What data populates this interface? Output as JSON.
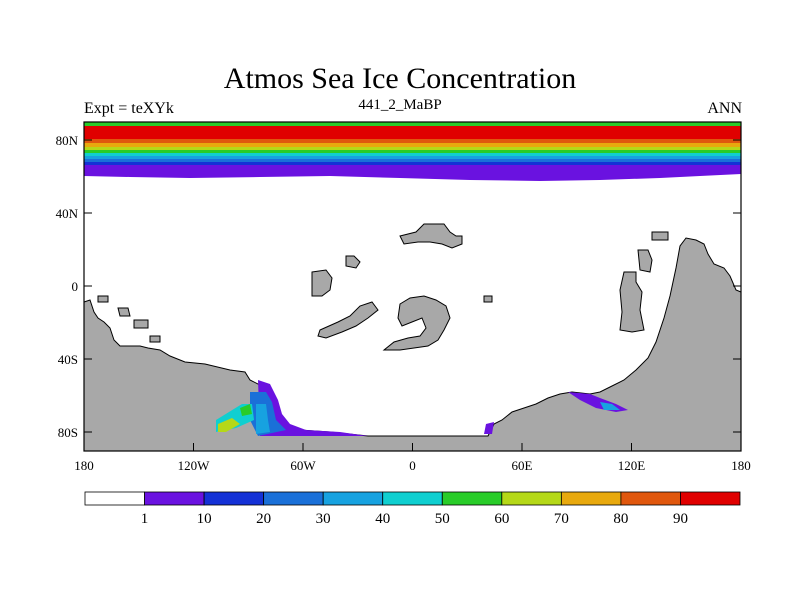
{
  "title": "Atmos Sea Ice Concentration",
  "subtitle_left": "Expt = teXYk",
  "subtitle_center": "441_2_MaBP",
  "subtitle_right": "ANN",
  "colors": {
    "land": "#a8a8a8",
    "ocean": "#ffffff",
    "outline": "#000000"
  },
  "chart_data": {
    "type": "heatmap",
    "variable": "Atmos Sea Ice Concentration",
    "x_axis": {
      "range": [
        -180,
        180
      ],
      "ticks": [
        "180",
        "120W",
        "60W",
        "0",
        "60E",
        "120E",
        "180"
      ]
    },
    "y_axis": {
      "range": [
        -90,
        90
      ],
      "ticks": [
        "80N",
        "40N",
        "0",
        "40S",
        "80S"
      ]
    },
    "colorbar": {
      "levels": [
        1,
        10,
        20,
        30,
        40,
        50,
        60,
        70,
        80,
        90
      ],
      "labels": [
        "1",
        "10",
        "20",
        "30",
        "40",
        "50",
        "60",
        "70",
        "80",
        "90"
      ],
      "colors": [
        "#ffffff",
        "#6a12e0",
        "#1431d6",
        "#1a70d8",
        "#17a2e0",
        "#10cfd0",
        "#29cc29",
        "#b5d818",
        "#e8a90e",
        "#e0570d",
        "#e00000"
      ]
    },
    "arctic_ice_edge_lat": 60,
    "arctic_pole_concentration": 90
  }
}
